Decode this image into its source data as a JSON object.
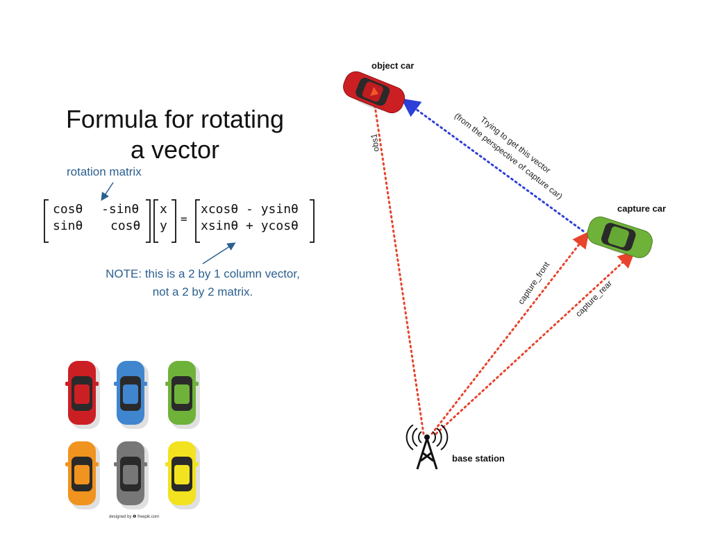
{
  "title": {
    "line1": "Formula for rotating",
    "line2": "a vector"
  },
  "rotation_label": "rotation matrix",
  "matrix": {
    "rot_row1_c1": "cosθ",
    "rot_row1_c2": "-sinθ",
    "rot_row2_c1": "sinθ",
    "rot_row2_c2": "cosθ",
    "vec_row1": "x",
    "vec_row2": "y",
    "equals": "=",
    "res_row1": "xcosθ - ysinθ",
    "res_row2": "xsinθ + ycosθ"
  },
  "note": {
    "line1": "NOTE: this is a 2 by 1 column vector,",
    "line2": "not a 2 by 2 matrix."
  },
  "credit": "designed by ❶ freepik.com",
  "diagram": {
    "object_car_label": "object car",
    "capture_car_label": "capture car",
    "base_station_label": "base station",
    "obs_label": "obs1",
    "capture_front_label": "capture_front",
    "capture_rear_label": "capture_rear",
    "vector_note_line1": "Trying to get this vector",
    "vector_note_line2": "(from the perspective of capture car)"
  },
  "car_palette": [
    "#cc1f24",
    "#3f86cf",
    "#6fb23a",
    "#f0931f",
    "#777777",
    "#f2e21f"
  ],
  "colors": {
    "accent_blue": "#2b5f8f",
    "dotted_red": "#e8432c",
    "dotted_blue": "#2d3fd9"
  }
}
